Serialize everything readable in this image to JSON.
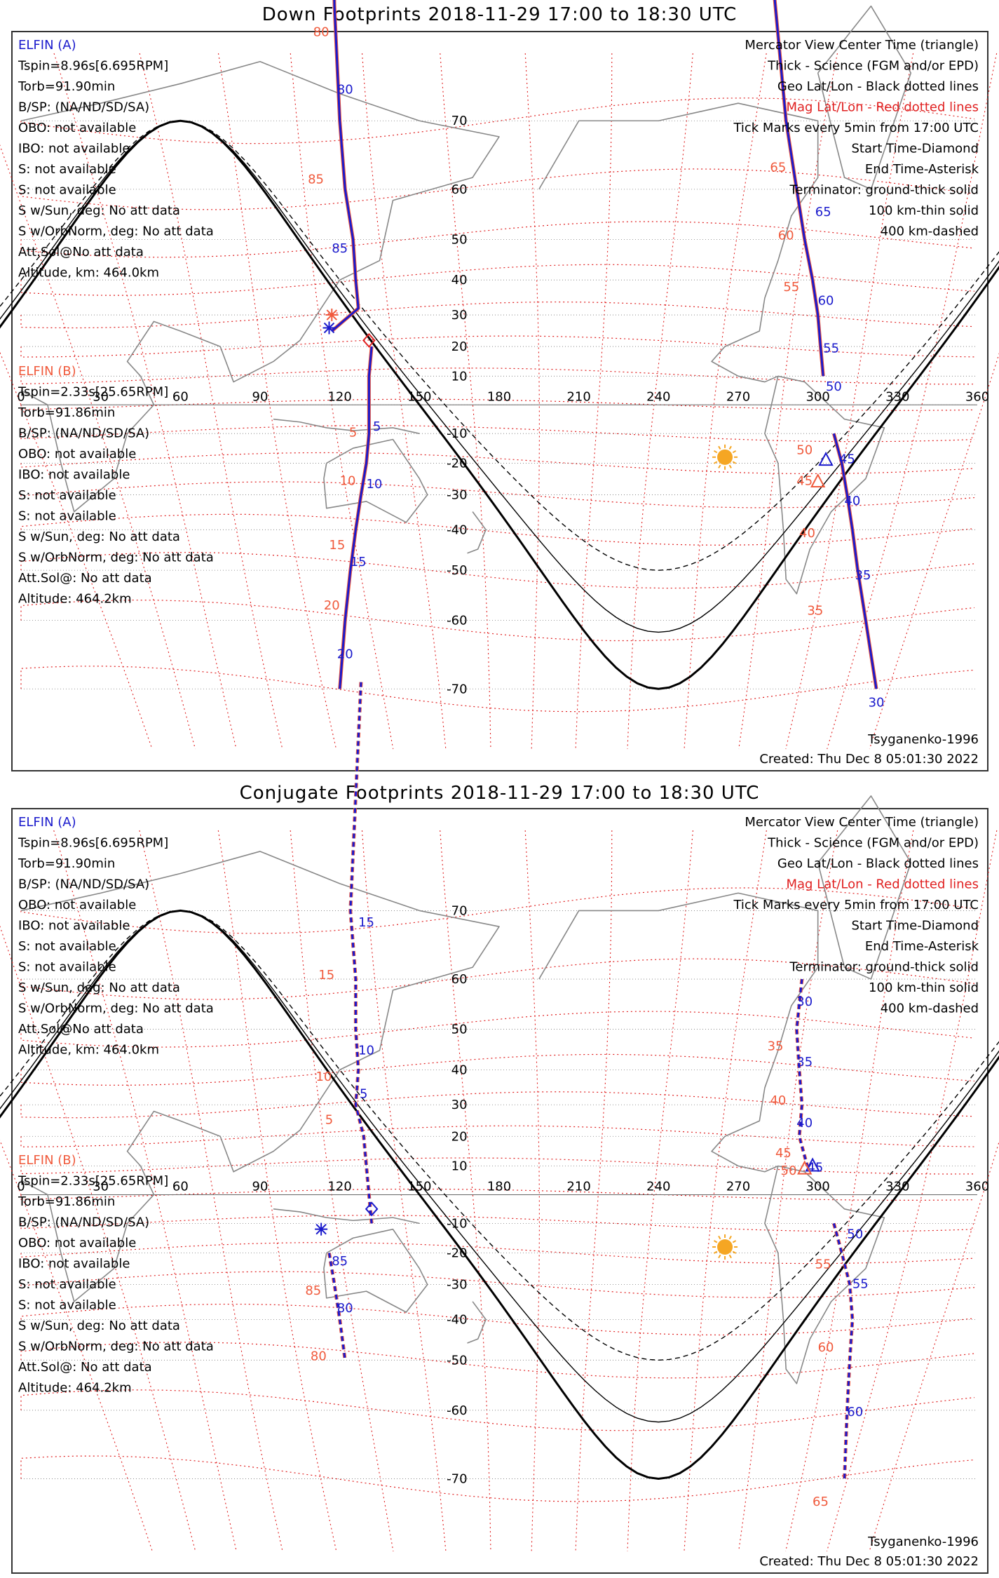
{
  "panels": [
    {
      "id": "down",
      "title": "Down Footprints 2018-11-29 17:00 to 18:30 UTC",
      "elfin_a": [
        "ELFIN (A)",
        "Tspin=8.96s[6.695RPM]",
        "Torb=91.90min",
        "B/SP: (NA/ND/SD/SA)",
        "OBO: not available",
        "IBO: not available",
        "S: not available",
        "S: not available",
        "S w/Sun, deg: No att data",
        "S w/OrbNorm, deg: No att data",
        "Att.Sol@No att data",
        "Altitude, km: 464.0km"
      ],
      "elfin_b": [
        "ELFIN (B)",
        "Tspin=2.33s[25.65RPM]",
        "Torb=91.86min",
        "B/SP: (NA/ND/SD/SA)",
        "OBO: not available",
        "IBO: not available",
        "S: not available",
        "S: not available",
        "S w/Sun, deg: No att data",
        "S w/OrbNorm, deg: No att data",
        "Att.Sol@: No att data",
        "Altitude: 464.2km"
      ],
      "legend": [
        "Mercator View Center Time (triangle)",
        "Thick - Science (FGM and/or EPD)",
        "Geo Lat/Lon - Black dotted lines",
        "Mag Lat/Lon - Red dotted lines",
        "Tick Marks every 5min from 17:00 UTC",
        "Start Time-Diamond",
        "End Time-Asterisk",
        "Terminator: ground-thick solid",
        "100 km-thin solid",
        "400 km-dashed"
      ],
      "footer_left": "",
      "footer_right_1": "Tsyganenko-1996",
      "footer_right_2": "Created: Thu Dec  8 05:01:30 2022"
    },
    {
      "id": "conjugate",
      "title": "Conjugate Footprints 2018-11-29 17:00 to 18:30 UTC",
      "elfin_a": [
        "ELFIN (A)",
        "Tspin=8.96s[6.695RPM]",
        "Torb=91.90min",
        "B/SP: (NA/ND/SD/SA)",
        "OBO: not available",
        "IBO: not available",
        "S: not available",
        "S: not available",
        "S w/Sun, deg: No att data",
        "S w/OrbNorm, deg: No att data",
        "Att.Sol@No att data",
        "Altitude, km: 464.0km"
      ],
      "elfin_b": [
        "ELFIN (B)",
        "Tspin=2.33s[25.65RPM]",
        "Torb=91.86min",
        "B/SP: (NA/ND/SD/SA)",
        "OBO: not available",
        "IBO: not available",
        "S: not available",
        "S: not available",
        "S w/Sun, deg: No att data",
        "S w/OrbNorm, deg: No att data",
        "Att.Sol@: No att data",
        "Altitude: 464.2km"
      ],
      "legend": [
        "Mercator View Center Time (triangle)",
        "Thick - Science (FGM and/or EPD)",
        "Geo Lat/Lon - Black dotted lines",
        "Mag Lat/Lon - Red dotted lines",
        "Tick Marks every 5min from 17:00 UTC",
        "Start Time-Diamond",
        "End Time-Asterisk",
        "Terminator: ground-thick solid",
        "100 km-thin solid",
        "400 km-dashed"
      ],
      "footer_left": "",
      "footer_right_1": "Tsyganenko-1996",
      "footer_right_2": "Created: Thu Dec  8 05:01:30 2022"
    }
  ],
  "axes": {
    "lon_labels": [
      "0",
      "30",
      "60",
      "90",
      "120",
      "150",
      "180",
      "210",
      "240",
      "270",
      "300",
      "330",
      "360"
    ],
    "lat_labels": [
      "70",
      "60",
      "50",
      "40",
      "30",
      "20",
      "10",
      "-10",
      "-20",
      "-30",
      "-40",
      "-50",
      "-60",
      "-70"
    ]
  },
  "colors": {
    "elfin_a": "#1a1acc",
    "elfin_b": "#f05a3c",
    "mag_grid": "#e02020",
    "sun": "#f5a623",
    "coast": "#888888"
  },
  "chart_data": [
    {
      "type": "scatter",
      "title": "Down Footprints 2018-11-29 17:00 to 18:30 UTC",
      "xlabel": "",
      "ylabel": "",
      "xlim": [
        0,
        360
      ],
      "ylim": [
        -80,
        80
      ],
      "series": [
        {
          "name": "ELFIN (A)",
          "color": "#1a1acc",
          "segments": [
            {
              "lat": [
                85,
                80,
                70,
                60,
                50,
                40,
                32,
                25
              ],
              "lon": [
                117,
                118,
                120,
                122,
                125,
                126,
                127,
                117
              ]
            },
            {
              "lat": [
                20,
                10,
                -10,
                -20,
                -30,
                -40,
                -50,
                -60,
                -70
              ],
              "lon": [
                132,
                131,
                131,
                130,
                128,
                126,
                124,
                122,
                120
              ]
            },
            {
              "lat": [
                85,
                70,
                60,
                50,
                40,
                30,
                20,
                10
              ],
              "lon": [
                280,
                288,
                292,
                295,
                298,
                300,
                301,
                302
              ]
            },
            {
              "lat": [
                -10,
                -20,
                -30,
                -40,
                -50,
                -60,
                -70
              ],
              "lon": [
                306,
                309,
                311,
                313,
                315,
                318,
                322
              ]
            }
          ],
          "tick_labels": [
            {
              "t": "80",
              "lat": 73,
              "lon": 122
            },
            {
              "t": "85",
              "lat": 47,
              "lon": 120
            },
            {
              "t": "5",
              "lat": -9,
              "lon": 134
            },
            {
              "t": "10",
              "lat": -28,
              "lon": 133
            },
            {
              "t": "15",
              "lat": -49,
              "lon": 127
            },
            {
              "t": "20",
              "lat": -66,
              "lon": 122
            },
            {
              "t": "65",
              "lat": 55,
              "lon": 302
            },
            {
              "t": "60",
              "lat": 33,
              "lon": 303
            },
            {
              "t": "55",
              "lat": 18,
              "lon": 305
            },
            {
              "t": "50",
              "lat": 5,
              "lon": 306
            },
            {
              "t": "45",
              "lat": -20,
              "lon": 311
            },
            {
              "t": "40",
              "lat": -33,
              "lon": 313
            },
            {
              "t": "35",
              "lat": -52,
              "lon": 317
            },
            {
              "t": "30",
              "lat": -72,
              "lon": 322
            }
          ]
        },
        {
          "name": "ELFIN (B)",
          "color": "#f05a3c",
          "tick_labels": [
            {
              "t": "80",
              "lat": 78,
              "lon": 113
            },
            {
              "t": "85",
              "lat": 61,
              "lon": 111
            },
            {
              "t": "5",
              "lat": -11,
              "lon": 125
            },
            {
              "t": "10",
              "lat": -27,
              "lon": 123
            },
            {
              "t": "15",
              "lat": -45,
              "lon": 119
            },
            {
              "t": "20",
              "lat": -58,
              "lon": 117
            },
            {
              "t": "65",
              "lat": 63,
              "lon": 285
            },
            {
              "t": "60",
              "lat": 50,
              "lon": 288
            },
            {
              "t": "55",
              "lat": 37,
              "lon": 290
            },
            {
              "t": "50",
              "lat": -17,
              "lon": 295
            },
            {
              "t": "45",
              "lat": -27,
              "lon": 295
            },
            {
              "t": "40",
              "lat": -42,
              "lon": 296
            },
            {
              "t": "35",
              "lat": -59,
              "lon": 299
            }
          ]
        }
      ],
      "markers": [
        {
          "kind": "diamond",
          "lat": 22,
          "lon": 131,
          "color": "#e02020"
        },
        {
          "kind": "asterisk",
          "lat": 26,
          "lon": 116,
          "color": "#1a1acc"
        },
        {
          "kind": "asterisk",
          "lat": 30,
          "lon": 117,
          "color": "#f05a3c"
        },
        {
          "kind": "triangle",
          "lat": -26,
          "lon": 300,
          "color": "#f05a3c"
        },
        {
          "kind": "triangle",
          "lat": -19,
          "lon": 303,
          "color": "#1a1acc"
        },
        {
          "kind": "sun",
          "lat": -18,
          "lon": 265
        }
      ]
    },
    {
      "type": "scatter",
      "title": "Conjugate Footprints 2018-11-29 17:00 to 18:30 UTC",
      "xlabel": "",
      "ylabel": "",
      "xlim": [
        0,
        360
      ],
      "ylim": [
        -80,
        80
      ],
      "series": [
        {
          "name": "ELFIN (A)",
          "color": "#1a1acc",
          "segments": [
            {
              "lat": [
                85,
                70,
                60,
                50,
                40,
                30,
                20,
                10,
                -10
              ],
              "lon": [
                128,
                124,
                126,
                126,
                127,
                126,
                129,
                130,
                132
              ]
            },
            {
              "lat": [
                -20,
                -30,
                -40,
                -50
              ],
              "lon": [
                116,
                118,
                120,
                122
              ]
            },
            {
              "lat": [
                60,
                50,
                40,
                30,
                20,
                10
              ],
              "lon": [
                294,
                292,
                293,
                294,
                293,
                296
              ]
            },
            {
              "lat": [
                -10,
                -20,
                -30,
                -40,
                -50,
                -60,
                -70
              ],
              "lon": [
                306,
                309,
                312,
                313,
                312,
                311,
                310
              ]
            }
          ],
          "tick_labels": [
            {
              "t": "15",
              "lat": 68,
              "lon": 130
            },
            {
              "t": "10",
              "lat": 44,
              "lon": 130
            },
            {
              "t": "5",
              "lat": 32,
              "lon": 129
            },
            {
              "t": "85",
              "lat": -24,
              "lon": 120
            },
            {
              "t": "80",
              "lat": -38,
              "lon": 122
            },
            {
              "t": "30",
              "lat": 55,
              "lon": 295
            },
            {
              "t": "35",
              "lat": 41,
              "lon": 295
            },
            {
              "t": "40",
              "lat": 23,
              "lon": 295
            },
            {
              "t": "45",
              "lat": 8,
              "lon": 299
            },
            {
              "t": "50",
              "lat": -15,
              "lon": 314
            },
            {
              "t": "55",
              "lat": -31,
              "lon": 316
            },
            {
              "t": "60",
              "lat": -61,
              "lon": 314
            }
          ]
        },
        {
          "name": "ELFIN (B)",
          "color": "#f05a3c",
          "tick_labels": [
            {
              "t": "15",
              "lat": 60,
              "lon": 115
            },
            {
              "t": "10",
              "lat": 37,
              "lon": 114
            },
            {
              "t": "5",
              "lat": 24,
              "lon": 116
            },
            {
              "t": "85",
              "lat": -33,
              "lon": 110
            },
            {
              "t": "80",
              "lat": -50,
              "lon": 112
            },
            {
              "t": "35",
              "lat": 45,
              "lon": 284
            },
            {
              "t": "40",
              "lat": 30,
              "lon": 285
            },
            {
              "t": "45",
              "lat": 13,
              "lon": 287
            },
            {
              "t": "50",
              "lat": 7,
              "lon": 289
            },
            {
              "t": "55",
              "lat": -25,
              "lon": 302
            },
            {
              "t": "60",
              "lat": -48,
              "lon": 303
            },
            {
              "t": "65",
              "lat": -73,
              "lon": 301
            }
          ]
        }
      ],
      "markers": [
        {
          "kind": "diamond",
          "lat": -5,
          "lon": 132,
          "color": "#1a1acc"
        },
        {
          "kind": "asterisk",
          "lat": -12,
          "lon": 113,
          "color": "#1a1acc"
        },
        {
          "kind": "triangle",
          "lat": 10,
          "lon": 298,
          "color": "#1a1acc"
        },
        {
          "kind": "triangle",
          "lat": 9,
          "lon": 295,
          "color": "#f05a3c"
        },
        {
          "kind": "sun",
          "lat": -18,
          "lon": 265
        }
      ]
    }
  ]
}
